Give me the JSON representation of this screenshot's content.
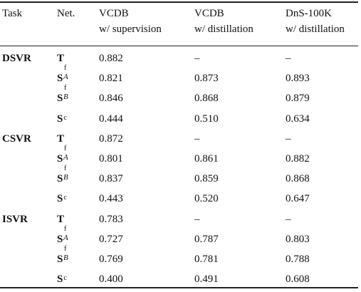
{
  "table": {
    "headers": {
      "task": "Task",
      "net": "Net.",
      "col1": [
        "VCDB",
        "w/ supervision"
      ],
      "col2": [
        "VCDB",
        "w/ distillation"
      ],
      "col3": [
        "DnS-100K",
        "w/ distillation"
      ]
    },
    "groups": [
      {
        "task": "DSVR",
        "rows": [
          {
            "net": "T",
            "sup": "",
            "sub": "",
            "v1": "0.882",
            "v2": "–",
            "v3": "–"
          },
          {
            "net": "S",
            "sup": "f",
            "sub": "A",
            "v1": "0.821",
            "v2": "0.873",
            "v3": "0.893"
          },
          {
            "net": "S",
            "sup": "f",
            "sub": "B",
            "v1": "0.846",
            "v2": "0.868",
            "v3": "0.879"
          },
          {
            "net": "S",
            "sup": "c",
            "sub": "",
            "v1": "0.444",
            "v2": "0.510",
            "v3": "0.634"
          }
        ]
      },
      {
        "task": "CSVR",
        "rows": [
          {
            "net": "T",
            "sup": "",
            "sub": "",
            "v1": "0.872",
            "v2": "–",
            "v3": "–"
          },
          {
            "net": "S",
            "sup": "f",
            "sub": "A",
            "v1": "0.801",
            "v2": "0.861",
            "v3": "0.882"
          },
          {
            "net": "S",
            "sup": "f",
            "sub": "B",
            "v1": "0.837",
            "v2": "0.859",
            "v3": "0.868"
          },
          {
            "net": "S",
            "sup": "c",
            "sub": "",
            "v1": "0.443",
            "v2": "0.520",
            "v3": "0.647"
          }
        ]
      },
      {
        "task": "ISVR",
        "rows": [
          {
            "net": "T",
            "sup": "",
            "sub": "",
            "v1": "0.783",
            "v2": "–",
            "v3": "–"
          },
          {
            "net": "S",
            "sup": "f",
            "sub": "A",
            "v1": "0.727",
            "v2": "0.787",
            "v3": "0.803"
          },
          {
            "net": "S",
            "sup": "f",
            "sub": "B",
            "v1": "0.769",
            "v2": "0.781",
            "v3": "0.788"
          },
          {
            "net": "S",
            "sup": "c",
            "sub": "",
            "v1": "0.400",
            "v2": "0.491",
            "v3": "0.608"
          }
        ]
      }
    ]
  }
}
